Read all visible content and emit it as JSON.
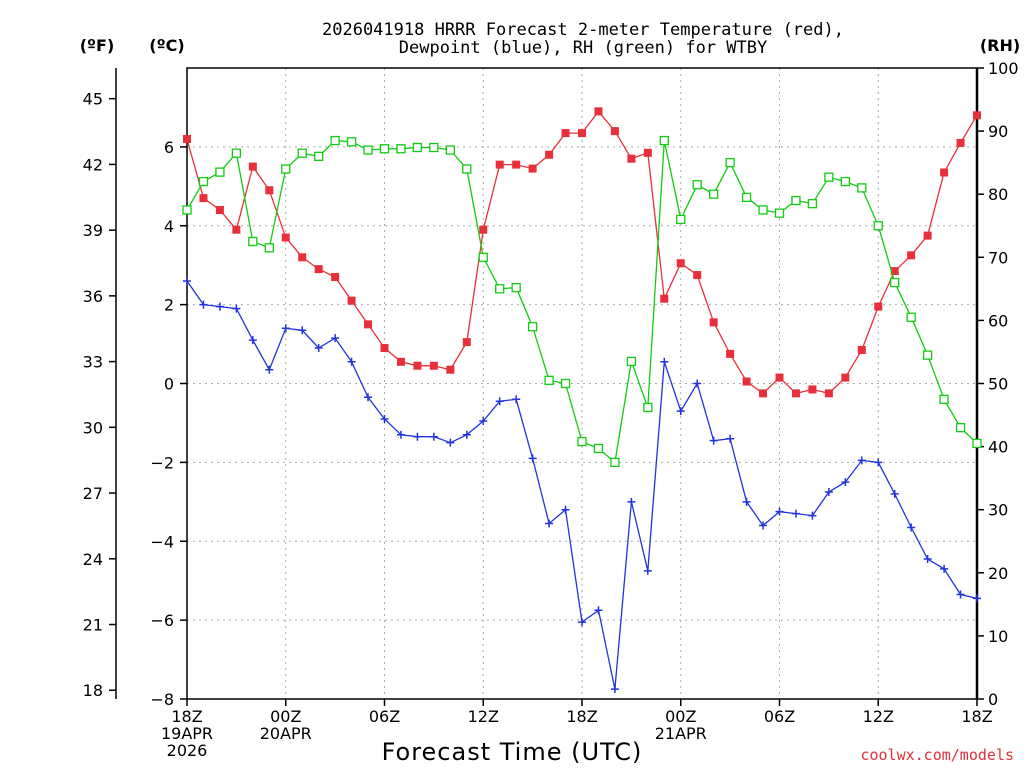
{
  "chart_data": {
    "type": "line",
    "title_line1": "2026041918 HRRR Forecast 2-meter Temperature (red),",
    "title_line2": "Dewpoint (blue), RH (green) for WTBY",
    "xlabel": "Forecast Time (UTC)",
    "credit": "coolwx.com/models",
    "units": {
      "left_f": "(ºF)",
      "left_c": "(ºC)",
      "right_rh": "(RH)"
    },
    "forecast_hours": [
      0,
      1,
      2,
      3,
      4,
      5,
      6,
      7,
      8,
      9,
      10,
      11,
      12,
      13,
      14,
      15,
      16,
      17,
      18,
      19,
      20,
      21,
      22,
      23,
      24,
      25,
      26,
      27,
      28,
      29,
      30,
      31,
      32,
      33,
      34,
      35,
      36,
      37,
      38,
      39,
      40,
      41,
      42,
      43,
      44,
      45,
      46,
      47,
      48
    ],
    "x_ticks": [
      {
        "hour": 0,
        "lines": [
          "18Z",
          "19APR",
          "2026"
        ]
      },
      {
        "hour": 6,
        "lines": [
          "00Z",
          "20APR"
        ]
      },
      {
        "hour": 12,
        "lines": [
          "06Z"
        ]
      },
      {
        "hour": 18,
        "lines": [
          "12Z"
        ]
      },
      {
        "hour": 24,
        "lines": [
          "18Z"
        ]
      },
      {
        "hour": 30,
        "lines": [
          "00Z",
          "21APR"
        ]
      },
      {
        "hour": 36,
        "lines": [
          "06Z"
        ]
      },
      {
        "hour": 42,
        "lines": [
          "12Z"
        ]
      },
      {
        "hour": 48,
        "lines": [
          "18Z"
        ]
      }
    ],
    "xlim": [
      0,
      48
    ],
    "ylim_c": [
      -8,
      8
    ],
    "ylim_rh": [
      0,
      100
    ],
    "y_ticks_c": [
      -8,
      -6,
      -4,
      -2,
      0,
      2,
      4,
      6
    ],
    "y_ticks_f": [
      18,
      21,
      24,
      27,
      30,
      33,
      36,
      39,
      42,
      45
    ],
    "y_ticks_rh": [
      0,
      10,
      20,
      30,
      40,
      50,
      60,
      70,
      80,
      90,
      100
    ],
    "grid": true,
    "colors": {
      "temperature": "#e8303a",
      "dewpoint": "#2233dd",
      "rh": "#11cc11",
      "grid": "#aaaaaa",
      "credit": "#e0303a"
    },
    "series": [
      {
        "name": "Temperature (red)",
        "axis": "c",
        "marker": "filled-square",
        "values": [
          6.2,
          4.7,
          4.4,
          3.9,
          5.5,
          4.9,
          3.7,
          3.2,
          2.9,
          2.7,
          2.1,
          1.5,
          0.9,
          0.55,
          0.45,
          0.45,
          0.35,
          1.05,
          3.9,
          5.55,
          5.55,
          5.45,
          5.8,
          6.35,
          6.35,
          6.9,
          6.4,
          5.7,
          5.85,
          2.15,
          3.05,
          2.75,
          1.55,
          0.75,
          0.05,
          -0.25,
          0.15,
          -0.25,
          -0.15,
          -0.25,
          0.15,
          0.85,
          1.95,
          2.85,
          3.25,
          3.75,
          5.35,
          6.1,
          6.8
        ]
      },
      {
        "name": "Dewpoint (blue)",
        "axis": "c",
        "marker": "plus",
        "values": [
          2.6,
          2.0,
          1.95,
          1.9,
          1.1,
          0.35,
          1.4,
          1.35,
          0.9,
          1.15,
          0.55,
          -0.35,
          -0.9,
          -1.3,
          -1.35,
          -1.35,
          -1.5,
          -1.3,
          -0.95,
          -0.45,
          -0.4,
          -1.9,
          -3.55,
          -3.2,
          -6.05,
          -5.75,
          -7.75,
          -3.0,
          -4.75,
          0.55,
          -0.7,
          0.0,
          -1.45,
          -1.4,
          -3.0,
          -3.6,
          -3.25,
          -3.3,
          -3.35,
          -2.75,
          -2.5,
          -1.95,
          -2.0,
          -2.8,
          -3.65,
          -4.45,
          -4.7,
          -5.35,
          -5.45
        ]
      },
      {
        "name": "RH (green)",
        "axis": "rh",
        "marker": "open-square",
        "values": [
          77.5,
          82.0,
          83.5,
          86.5,
          72.5,
          71.5,
          84.0,
          86.5,
          86.0,
          88.5,
          88.3,
          87.0,
          87.2,
          87.2,
          87.4,
          87.4,
          87.0,
          84.0,
          70.0,
          65.0,
          65.2,
          59.0,
          50.5,
          50.0,
          40.8,
          39.7,
          37.5,
          53.5,
          46.2,
          88.5,
          76.0,
          81.5,
          80.0,
          85.0,
          79.5,
          77.5,
          77.0,
          79.0,
          78.5,
          82.7,
          82.0,
          81.0,
          75.0,
          66.0,
          60.5,
          54.5,
          47.5,
          43.0,
          40.5
        ]
      }
    ]
  }
}
